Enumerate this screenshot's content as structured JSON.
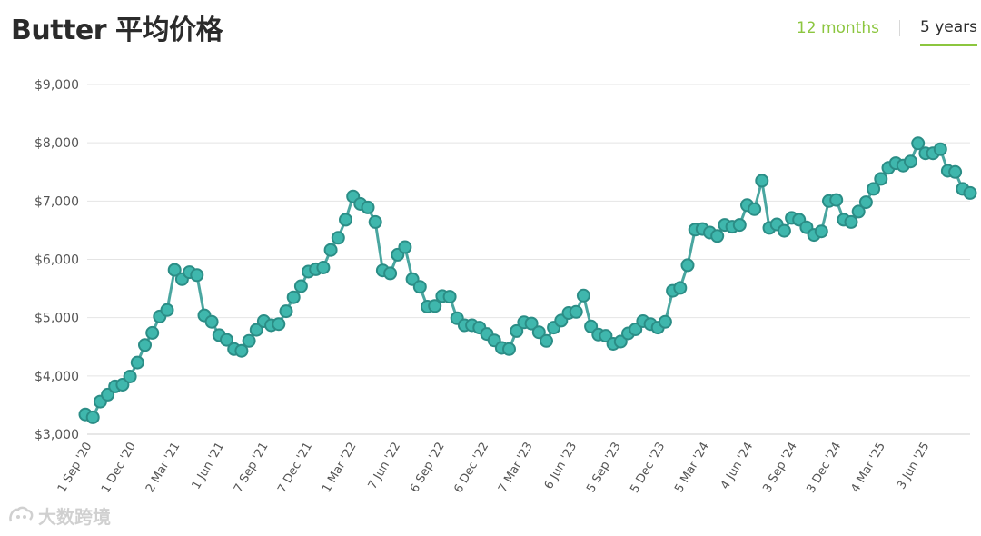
{
  "header": {
    "title": "Butter 平均价格",
    "tabs": [
      {
        "label": "12 months",
        "active": false
      },
      {
        "label": "5 years",
        "active": true
      }
    ]
  },
  "watermark": {
    "text": "大数跨境",
    "icon": "watermark-logo-icon"
  },
  "colors": {
    "line": "#4aa6a0",
    "marker_fill": "#3fb7ad",
    "marker_stroke": "#2b8d86",
    "grid": "#e4e4e4",
    "accent": "#8cc63f"
  },
  "chart_data": {
    "type": "line",
    "title": "Butter 平均价格",
    "xlabel": "",
    "ylabel": "",
    "ylim": [
      3000,
      9000
    ],
    "yticks": [
      3000,
      4000,
      5000,
      6000,
      7000,
      8000,
      9000
    ],
    "ytick_labels": [
      "$3,000",
      "$4,000",
      "$5,000",
      "$6,000",
      "$7,000",
      "$8,000",
      "$9,000"
    ],
    "xtick_labels": [
      "1 Sep '20",
      "1 Dec '20",
      "2 Mar '21",
      "1 Jun '21",
      "7 Sep '21",
      "7 Dec '21",
      "1 Mar '22",
      "7 Jun '22",
      "6 Sep '22",
      "6 Dec '22",
      "7 Mar '23",
      "6 Jun '23",
      "5 Sep '23",
      "5 Dec '23",
      "5 Mar '24",
      "4 Jun '24",
      "3 Sep '24",
      "3 Dec '24",
      "4 Mar '25",
      "3 Jun '25"
    ],
    "grid": true,
    "legend": "none",
    "series": [
      {
        "values": [
          3340,
          3290,
          3560,
          3680,
          3820,
          3850,
          3990,
          4230,
          4530,
          4740,
          5020,
          5130,
          5820,
          5660,
          5780,
          5730,
          5040,
          4930,
          4700,
          4620,
          4460,
          4430,
          4600,
          4790,
          4940,
          4870,
          4890,
          5110,
          5350,
          5540,
          5790,
          5830,
          5860,
          6160,
          6370,
          6680,
          7080,
          6950,
          6890,
          6640,
          5810,
          5760,
          6080,
          6210,
          5660,
          5530,
          5190,
          5200,
          5370,
          5360,
          4990,
          4870,
          4870,
          4830,
          4720,
          4610,
          4480,
          4460,
          4770,
          4920,
          4900,
          4750,
          4600,
          4830,
          4950,
          5080,
          5100,
          5380,
          4850,
          4710,
          4690,
          4550,
          4590,
          4730,
          4800,
          4940,
          4890,
          4830,
          4930,
          5460,
          5510,
          5900,
          6510,
          6520,
          6460,
          6400,
          6590,
          6560,
          6590,
          6930,
          6860,
          7350,
          6540,
          6600,
          6490,
          6710,
          6680,
          6550,
          6420,
          6480,
          7000,
          7020,
          6680,
          6640,
          6820,
          6980,
          7210,
          7380,
          7570,
          7650,
          7610,
          7680,
          7990,
          7820,
          7820,
          7890,
          7520,
          7500,
          7210,
          7140
        ]
      }
    ]
  }
}
